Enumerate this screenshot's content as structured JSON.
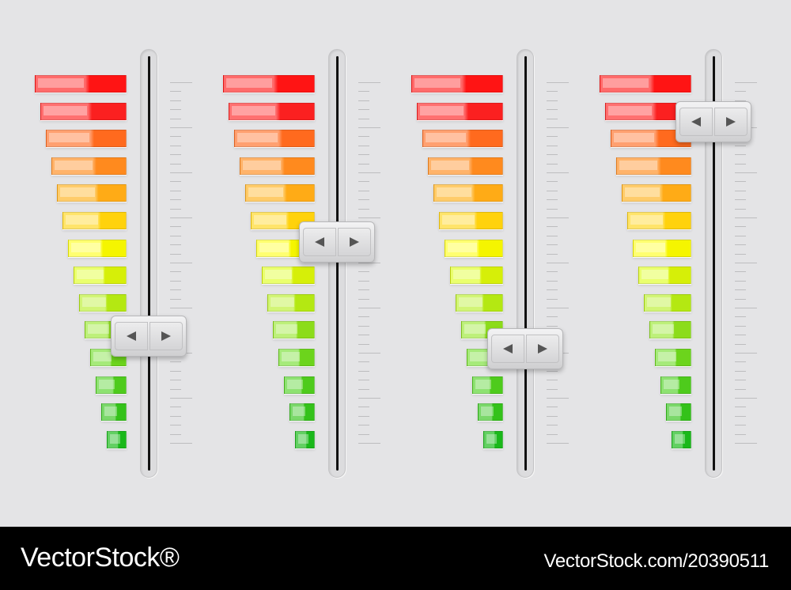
{
  "levels": [
    {
      "color": "#ff1414",
      "light": "#ff6b6b"
    },
    {
      "color": "#fb2020",
      "light": "#ff7070"
    },
    {
      "color": "#ff6a1e",
      "light": "#ffa070"
    },
    {
      "color": "#ff8a1e",
      "light": "#ffb36a"
    },
    {
      "color": "#ffab16",
      "light": "#ffcc6a"
    },
    {
      "color": "#ffd20c",
      "light": "#ffe46a"
    },
    {
      "color": "#f5f500",
      "light": "#ffff70"
    },
    {
      "color": "#d6ef08",
      "light": "#eaff6e"
    },
    {
      "color": "#b4e812",
      "light": "#d2f576"
    },
    {
      "color": "#8cdc1a",
      "light": "#bdf07a"
    },
    {
      "color": "#6cd41c",
      "light": "#a6ea7a"
    },
    {
      "color": "#4ecb1c",
      "light": "#8ee272"
    },
    {
      "color": "#34c21a",
      "light": "#7ad86a"
    },
    {
      "color": "#1ab81a",
      "light": "#62d062"
    }
  ],
  "sliders": [
    {
      "position": 0.67,
      "left_icon": "arrow-left-icon",
      "right_icon": "arrow-right-icon"
    },
    {
      "position": 0.45,
      "left_icon": "arrow-left-icon",
      "right_icon": "arrow-right-icon"
    },
    {
      "position": 0.7,
      "left_icon": "arrow-left-icon",
      "right_icon": "arrow-right-icon"
    },
    {
      "position": 0.17,
      "left_icon": "arrow-left-icon",
      "right_icon": "arrow-right-icon"
    }
  ],
  "footer": {
    "brand": "VectorStock®",
    "image_id": "VectorStock.com/20390511"
  }
}
